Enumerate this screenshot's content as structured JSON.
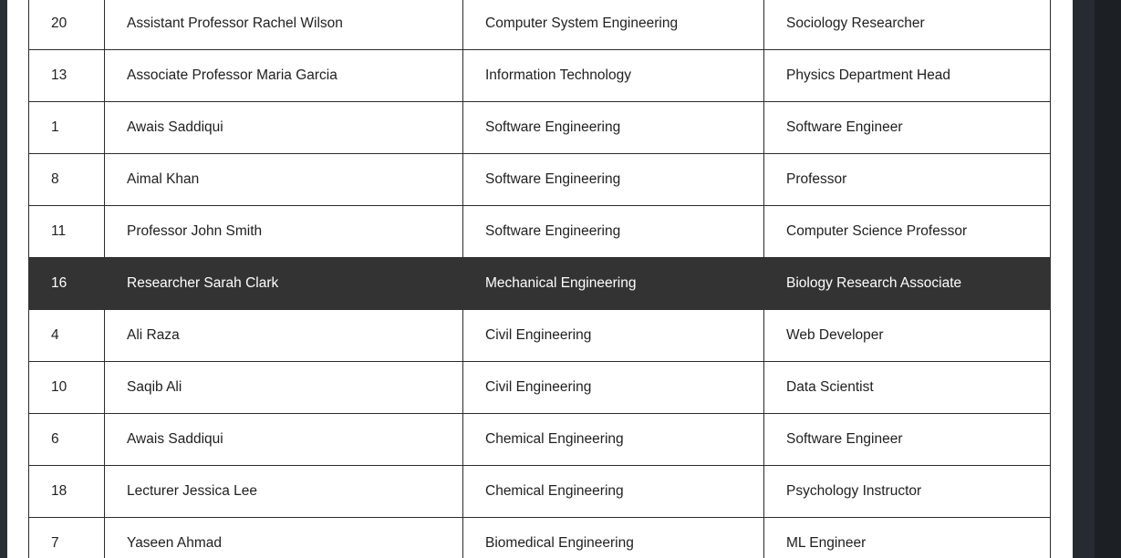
{
  "table": {
    "rows": [
      {
        "id": "20",
        "name": "Assistant Professor Rachel Wilson",
        "department": "Computer System Engineering",
        "designation": "Sociology Researcher",
        "selected": false
      },
      {
        "id": "13",
        "name": "Associate Professor Maria Garcia",
        "department": "Information Technology",
        "designation": "Physics Department Head",
        "selected": false
      },
      {
        "id": "1",
        "name": "Awais Saddiqui",
        "department": "Software Engineering",
        "designation": "Software Engineer",
        "selected": false
      },
      {
        "id": "8",
        "name": "Aimal Khan",
        "department": "Software Engineering",
        "designation": "Professor",
        "selected": false
      },
      {
        "id": "11",
        "name": "Professor John Smith",
        "department": "Software Engineering",
        "designation": "Computer Science Professor",
        "selected": false
      },
      {
        "id": "16",
        "name": "Researcher Sarah Clark",
        "department": "Mechanical Engineering",
        "designation": "Biology Research Associate",
        "selected": true
      },
      {
        "id": "4",
        "name": "Ali Raza",
        "department": "Civil Engineering",
        "designation": "Web Developer",
        "selected": false
      },
      {
        "id": "10",
        "name": "Saqib Ali",
        "department": "Civil Engineering",
        "designation": "Data Scientist",
        "selected": false
      },
      {
        "id": "6",
        "name": "Awais Saddiqui",
        "department": "Chemical Engineering",
        "designation": "Software Engineer",
        "selected": false
      },
      {
        "id": "18",
        "name": "Lecturer Jessica Lee",
        "department": "Chemical Engineering",
        "designation": "Psychology Instructor",
        "selected": false
      },
      {
        "id": "7",
        "name": "Yaseen Ahmad",
        "department": "Biomedical Engineering",
        "designation": "ML Engineer",
        "selected": false
      }
    ]
  },
  "colors": {
    "selected_row_bg": "#333333",
    "border": "#2b2b2b",
    "page_bg": "#1e2328"
  }
}
